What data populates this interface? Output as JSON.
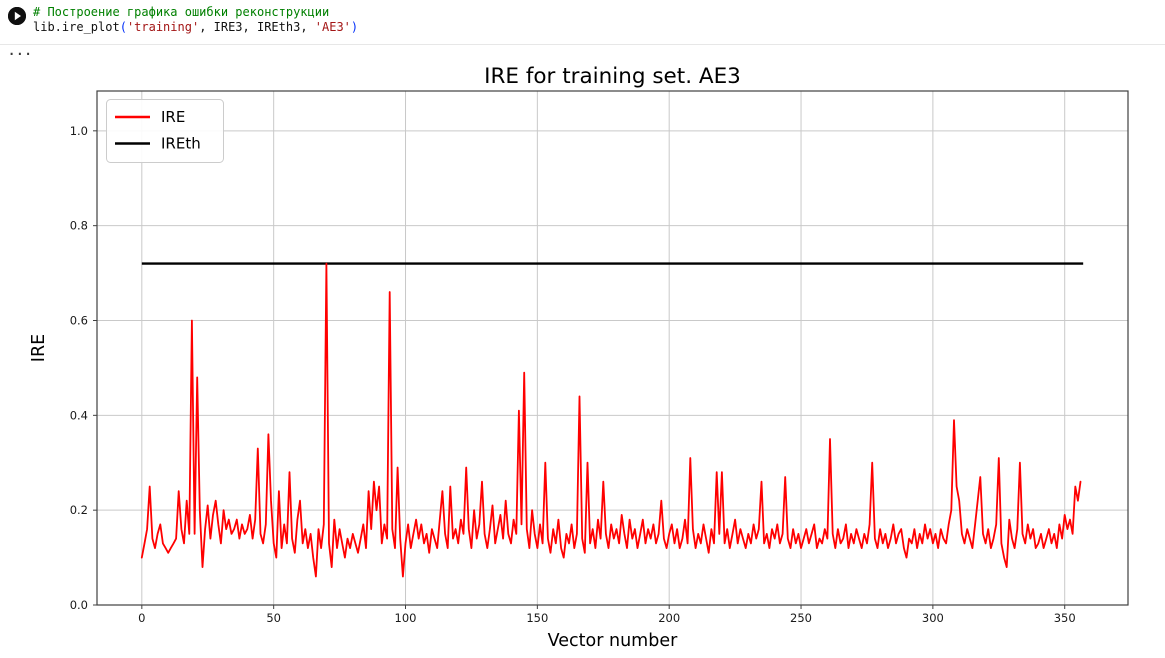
{
  "cell": {
    "run_button_tooltip": "Execute cell",
    "collapsed_indicator": "...",
    "code_lines": [
      {
        "tokens": [
          {
            "text": "# Построение графика ошибки реконструкции",
            "color": "#008000"
          }
        ]
      },
      {
        "tokens": [
          {
            "text": "lib.ire_plot",
            "color": "#111111"
          },
          {
            "text": "(",
            "color": "#0431fa"
          },
          {
            "text": "'training'",
            "color": "#a31515"
          },
          {
            "text": ", IRE3, IREth3, ",
            "color": "#111111"
          },
          {
            "text": "'AE3'",
            "color": "#a31515"
          },
          {
            "text": ")",
            "color": "#0431fa"
          }
        ]
      }
    ]
  },
  "chart_data": {
    "type": "line",
    "title": "IRE for training set. AE3",
    "xlabel": "Vector number",
    "ylabel": "IRE",
    "xlim": [
      -17,
      374
    ],
    "ylim": [
      0,
      1.084
    ],
    "x_ticks": [
      0,
      50,
      100,
      150,
      200,
      250,
      300,
      350
    ],
    "y_ticks": [
      0.0,
      0.2,
      0.4,
      0.6,
      0.8,
      1.0
    ],
    "grid": true,
    "grid_color": "#c9c9c9",
    "spine_color": "#404040",
    "legend_position": "upper left",
    "series": [
      {
        "name": "IRE",
        "color": "#ff0000",
        "x_start": 0,
        "x_step": 1,
        "values": [
          0.1,
          0.13,
          0.16,
          0.25,
          0.14,
          0.12,
          0.15,
          0.17,
          0.13,
          0.12,
          0.11,
          0.12,
          0.13,
          0.14,
          0.24,
          0.16,
          0.13,
          0.22,
          0.15,
          0.6,
          0.15,
          0.48,
          0.2,
          0.08,
          0.16,
          0.21,
          0.14,
          0.19,
          0.22,
          0.17,
          0.13,
          0.2,
          0.16,
          0.18,
          0.15,
          0.16,
          0.18,
          0.14,
          0.17,
          0.15,
          0.16,
          0.19,
          0.14,
          0.18,
          0.33,
          0.15,
          0.13,
          0.17,
          0.36,
          0.22,
          0.13,
          0.1,
          0.24,
          0.12,
          0.17,
          0.13,
          0.28,
          0.14,
          0.11,
          0.18,
          0.22,
          0.13,
          0.16,
          0.12,
          0.15,
          0.1,
          0.06,
          0.16,
          0.12,
          0.17,
          0.72,
          0.13,
          0.08,
          0.18,
          0.12,
          0.16,
          0.13,
          0.1,
          0.14,
          0.12,
          0.15,
          0.13,
          0.11,
          0.14,
          0.17,
          0.12,
          0.24,
          0.16,
          0.26,
          0.2,
          0.25,
          0.13,
          0.17,
          0.14,
          0.66,
          0.16,
          0.12,
          0.29,
          0.14,
          0.06,
          0.13,
          0.17,
          0.12,
          0.15,
          0.18,
          0.14,
          0.17,
          0.13,
          0.15,
          0.11,
          0.16,
          0.14,
          0.12,
          0.18,
          0.24,
          0.15,
          0.12,
          0.25,
          0.14,
          0.16,
          0.13,
          0.18,
          0.15,
          0.29,
          0.16,
          0.12,
          0.2,
          0.14,
          0.17,
          0.26,
          0.15,
          0.12,
          0.16,
          0.21,
          0.13,
          0.16,
          0.19,
          0.14,
          0.22,
          0.15,
          0.13,
          0.18,
          0.15,
          0.41,
          0.17,
          0.49,
          0.16,
          0.12,
          0.2,
          0.15,
          0.12,
          0.17,
          0.13,
          0.3,
          0.14,
          0.11,
          0.16,
          0.13,
          0.18,
          0.12,
          0.1,
          0.15,
          0.13,
          0.17,
          0.12,
          0.15,
          0.44,
          0.14,
          0.11,
          0.3,
          0.13,
          0.16,
          0.12,
          0.18,
          0.14,
          0.26,
          0.15,
          0.12,
          0.17,
          0.14,
          0.16,
          0.13,
          0.19,
          0.15,
          0.12,
          0.18,
          0.14,
          0.16,
          0.12,
          0.15,
          0.18,
          0.13,
          0.16,
          0.14,
          0.17,
          0.13,
          0.15,
          0.22,
          0.14,
          0.12,
          0.15,
          0.17,
          0.13,
          0.16,
          0.12,
          0.14,
          0.18,
          0.13,
          0.31,
          0.16,
          0.12,
          0.15,
          0.13,
          0.17,
          0.14,
          0.11,
          0.16,
          0.13,
          0.28,
          0.15,
          0.28,
          0.13,
          0.16,
          0.12,
          0.15,
          0.18,
          0.13,
          0.16,
          0.14,
          0.12,
          0.15,
          0.13,
          0.17,
          0.14,
          0.16,
          0.26,
          0.13,
          0.15,
          0.12,
          0.16,
          0.14,
          0.17,
          0.13,
          0.15,
          0.27,
          0.14,
          0.12,
          0.16,
          0.13,
          0.15,
          0.12,
          0.14,
          0.16,
          0.13,
          0.15,
          0.17,
          0.12,
          0.14,
          0.13,
          0.16,
          0.14,
          0.35,
          0.15,
          0.12,
          0.16,
          0.13,
          0.14,
          0.17,
          0.12,
          0.15,
          0.13,
          0.16,
          0.14,
          0.12,
          0.15,
          0.13,
          0.17,
          0.3,
          0.14,
          0.12,
          0.16,
          0.13,
          0.15,
          0.12,
          0.14,
          0.17,
          0.13,
          0.15,
          0.16,
          0.12,
          0.1,
          0.14,
          0.13,
          0.16,
          0.12,
          0.15,
          0.13,
          0.17,
          0.14,
          0.16,
          0.13,
          0.15,
          0.12,
          0.16,
          0.14,
          0.13,
          0.17,
          0.2,
          0.39,
          0.25,
          0.22,
          0.15,
          0.13,
          0.16,
          0.14,
          0.12,
          0.17,
          0.22,
          0.27,
          0.15,
          0.13,
          0.16,
          0.12,
          0.14,
          0.17,
          0.31,
          0.13,
          0.1,
          0.08,
          0.18,
          0.14,
          0.12,
          0.16,
          0.3,
          0.15,
          0.13,
          0.17,
          0.14,
          0.16,
          0.12,
          0.13,
          0.15,
          0.12,
          0.14,
          0.16,
          0.13,
          0.15,
          0.12,
          0.17,
          0.14,
          0.19,
          0.16,
          0.18,
          0.15,
          0.25,
          0.22,
          0.26
        ]
      },
      {
        "name": "IREth",
        "color": "#000000",
        "type": "hline",
        "value": 0.72,
        "x_range": [
          0,
          357
        ]
      }
    ]
  }
}
